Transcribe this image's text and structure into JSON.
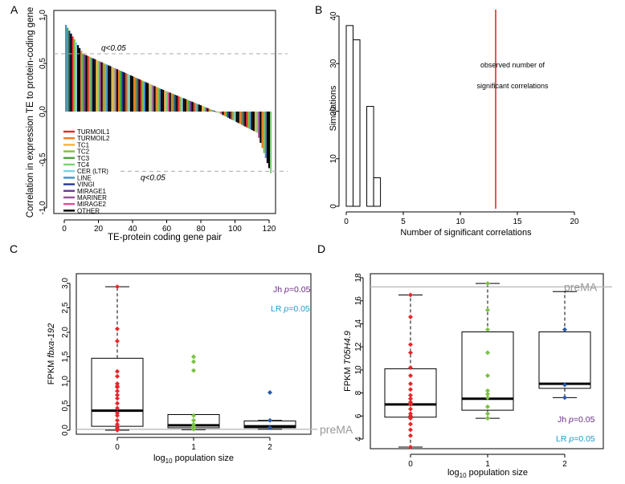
{
  "panels": {
    "a": "A",
    "b": "B",
    "c": "C",
    "d": "D"
  },
  "chart_data": [
    {
      "id": "A",
      "type": "bar",
      "xlabel": "TE-protein coding gene pair",
      "ylabel": "Correlation in expression TE to protein-coding gene",
      "xlim": [
        0,
        122
      ],
      "ylim": [
        -1.0,
        1.0
      ],
      "xticks": [
        "0",
        "20",
        "40",
        "60",
        "80",
        "100",
        "120"
      ],
      "yticks": [
        "-1.0",
        "-0.5",
        "0.0",
        "0.5",
        "1.0"
      ],
      "thresholds": [
        {
          "y": 0.6,
          "label": "q<0.05"
        },
        {
          "y": -0.62,
          "label": "q<0.05"
        }
      ],
      "legend": [
        {
          "name": "TURMOIL1",
          "color": "#e8262a"
        },
        {
          "name": "TURMOIL2",
          "color": "#f07b21"
        },
        {
          "name": "TC1",
          "color": "#f5b23d"
        },
        {
          "name": "TC2",
          "color": "#83bf3e"
        },
        {
          "name": "TC3",
          "color": "#4aa63c"
        },
        {
          "name": "TC4",
          "color": "#7dd07a"
        },
        {
          "name": "CER (LTR)",
          "color": "#7fd3e6"
        },
        {
          "name": "LINE",
          "color": "#3f8fd2"
        },
        {
          "name": "VINGI",
          "color": "#233b8f"
        },
        {
          "name": "MIRAGE1",
          "color": "#6b3a91"
        },
        {
          "name": "MARINER",
          "color": "#a14c9a"
        },
        {
          "name": "MIRAGE2",
          "color": "#e0509a"
        },
        {
          "name": "OTHER",
          "color": "#000000"
        }
      ],
      "bar_count": 121,
      "top_value": 0.9,
      "bottom_value": -0.64
    },
    {
      "id": "B",
      "type": "bar",
      "xlabel": "Number of significant correlations",
      "ylabel": "Simulations",
      "xlim": [
        0,
        20
      ],
      "ylim": [
        0,
        40
      ],
      "xticks": [
        "0",
        "5",
        "10",
        "15",
        "20"
      ],
      "yticks": [
        "0",
        "10",
        "20",
        "30",
        "40"
      ],
      "bins": [
        {
          "x0": 0,
          "x1": 0.6,
          "count": 38
        },
        {
          "x0": 0.6,
          "x1": 1.2,
          "count": 35
        },
        {
          "x0": 1.8,
          "x1": 2.4,
          "count": 21
        },
        {
          "x0": 2.4,
          "x1": 3.0,
          "count": 6
        }
      ],
      "observed": 13.1,
      "annotation": [
        "observed number of",
        "significant correlations"
      ]
    },
    {
      "id": "C",
      "type": "box",
      "xlabel_pre": "log",
      "xlabel_sub": "10",
      "xlabel_post": " population size",
      "ylabel_pre": "FPKM ",
      "ylabel_gene": "fbxa-192",
      "categories": [
        "0",
        "1",
        "2"
      ],
      "ylim": [
        0,
        3.0
      ],
      "yticks": [
        "0.0",
        "0.5",
        "1.0",
        "1.5",
        "2.0",
        "2.5",
        "3.0"
      ],
      "reference": {
        "value": 0.02,
        "label": "preMA"
      },
      "tests": [
        {
          "name": "Jh ",
          "p": "p",
          "val": "=0.05",
          "color": "#6b2d86"
        },
        {
          "name": "LR ",
          "p": "p",
          "val": "=0.05",
          "color": "#1e9ac8"
        }
      ],
      "boxes": [
        {
          "min": 0.0,
          "q1": 0.08,
          "median": 0.4,
          "q3": 1.47,
          "max": 2.93
        },
        {
          "min": 0.01,
          "q1": 0.05,
          "median": 0.1,
          "q3": 0.32,
          "max": 0.32
        },
        {
          "min": 0.02,
          "q1": 0.05,
          "median": 0.08,
          "q3": 0.19,
          "max": 0.2
        }
      ],
      "points": [
        {
          "g": 0,
          "color": "#e8262a",
          "values": [
            2.93,
            2.07,
            1.82,
            1.2,
            1.1,
            0.95,
            0.9,
            0.88,
            0.8,
            0.72,
            0.65,
            0.55,
            0.45,
            0.35,
            0.3,
            0.2,
            0.12,
            0.05,
            0.02,
            0.0
          ]
        },
        {
          "g": 1,
          "color": "#7ac142",
          "values": [
            1.5,
            1.4,
            1.22,
            0.3,
            0.2,
            0.12,
            0.08,
            0.05,
            0.02
          ]
        },
        {
          "g": 2,
          "color": "#2a5aa8",
          "values": [
            0.77,
            0.2,
            0.05
          ]
        }
      ]
    },
    {
      "id": "D",
      "type": "box",
      "xlabel_pre": "log",
      "xlabel_sub": "10",
      "xlabel_post": " population size",
      "ylabel_pre": "FPKM ",
      "ylabel_gene": "T05H4.9",
      "categories": [
        "0",
        "1",
        "2"
      ],
      "ylim": [
        3,
        18
      ],
      "yticks": [
        "4",
        "6",
        "8",
        "10",
        "12",
        "14",
        "16",
        "18"
      ],
      "reference": {
        "value": 17.2,
        "label": "preMA"
      },
      "tests": [
        {
          "name": "Jh ",
          "p": "p",
          "val": "=0.05",
          "color": "#6b2d86"
        },
        {
          "name": "LR ",
          "p": "p",
          "val": "=0.05",
          "color": "#1e9ac8"
        }
      ],
      "boxes": [
        {
          "min": 3.3,
          "q1": 5.9,
          "median": 7.0,
          "q3": 10.1,
          "max": 16.5
        },
        {
          "min": 5.8,
          "q1": 6.5,
          "median": 7.5,
          "q3": 13.3,
          "max": 17.5
        },
        {
          "min": 7.6,
          "q1": 8.4,
          "median": 8.8,
          "q3": 13.3,
          "max": 16.8
        }
      ],
      "points": [
        {
          "g": 0,
          "color": "#e8262a",
          "values": [
            16.5,
            14.6,
            12.2,
            11.5,
            10.2,
            9.5,
            8.8,
            8.3,
            7.8,
            7.5,
            7.2,
            7.0,
            6.6,
            6.2,
            6.0,
            5.8,
            5.3,
            4.8,
            4.3,
            3.3
          ]
        },
        {
          "g": 1,
          "color": "#7ac142",
          "values": [
            17.5,
            15.2,
            13.5,
            11.5,
            9.5,
            8.2,
            7.9,
            7.6,
            6.8,
            6.2,
            5.8
          ]
        },
        {
          "g": 2,
          "color": "#2a5aa8",
          "values": [
            13.5,
            8.7,
            7.6
          ]
        }
      ]
    }
  ]
}
